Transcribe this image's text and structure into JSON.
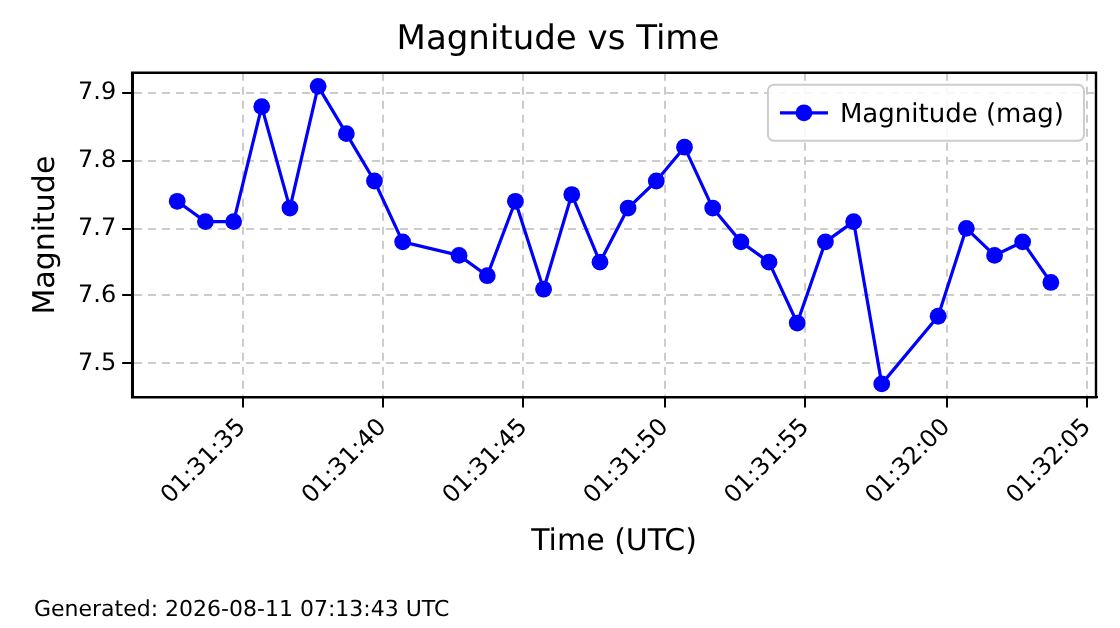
{
  "chart_data": {
    "type": "line",
    "title": "Magnitude vs Time",
    "xlabel": "Time (UTC)",
    "ylabel": "Magnitude",
    "annotations": [
      "Generated: 2026-08-11 07:13:43 UTC"
    ],
    "x": [
      1.52575,
      1.526028,
      1.526306,
      1.526583,
      1.526861,
      1.527139,
      1.527417,
      1.527694,
      1.527972,
      1.528528,
      1.528806,
      1.529083,
      1.529361,
      1.529639,
      1.529917,
      1.530194,
      1.530472,
      1.53075,
      1.531028,
      1.531306,
      1.531583,
      1.531861,
      1.532139,
      1.532417,
      1.532694,
      1.53325,
      1.533528,
      1.533806,
      1.534083,
      1.534361
    ],
    "series": [
      {
        "name": "Magnitude (mag)",
        "color": "#0000ff",
        "values": [
          7.74,
          7.71,
          7.71,
          7.88,
          7.73,
          7.91,
          7.84,
          7.77,
          7.68,
          7.66,
          7.63,
          7.74,
          7.61,
          7.75,
          7.65,
          7.73,
          7.77,
          7.82,
          7.73,
          7.68,
          7.65,
          7.56,
          7.68,
          7.71,
          7.47,
          7.57,
          7.7,
          7.66,
          7.68,
          7.62
        ]
      }
    ],
    "xlim": [
      1.525306,
      1.534806
    ],
    "xticks": [
      {
        "value": 1.526389,
        "label": "01:31:35"
      },
      {
        "value": 1.527778,
        "label": "01:31:40"
      },
      {
        "value": 1.529167,
        "label": "01:31:45"
      },
      {
        "value": 1.530556,
        "label": "01:31:50"
      },
      {
        "value": 1.531944,
        "label": "01:31:55"
      },
      {
        "value": 1.533333,
        "label": "01:32:00"
      },
      {
        "value": 1.534722,
        "label": "01:32:05"
      }
    ],
    "ylim": [
      7.45,
      7.93
    ],
    "yticks": [
      7.5,
      7.6,
      7.7,
      7.8,
      7.9
    ],
    "grid": true,
    "legend": "top right",
    "marker": "circle",
    "line_style": "solid"
  }
}
